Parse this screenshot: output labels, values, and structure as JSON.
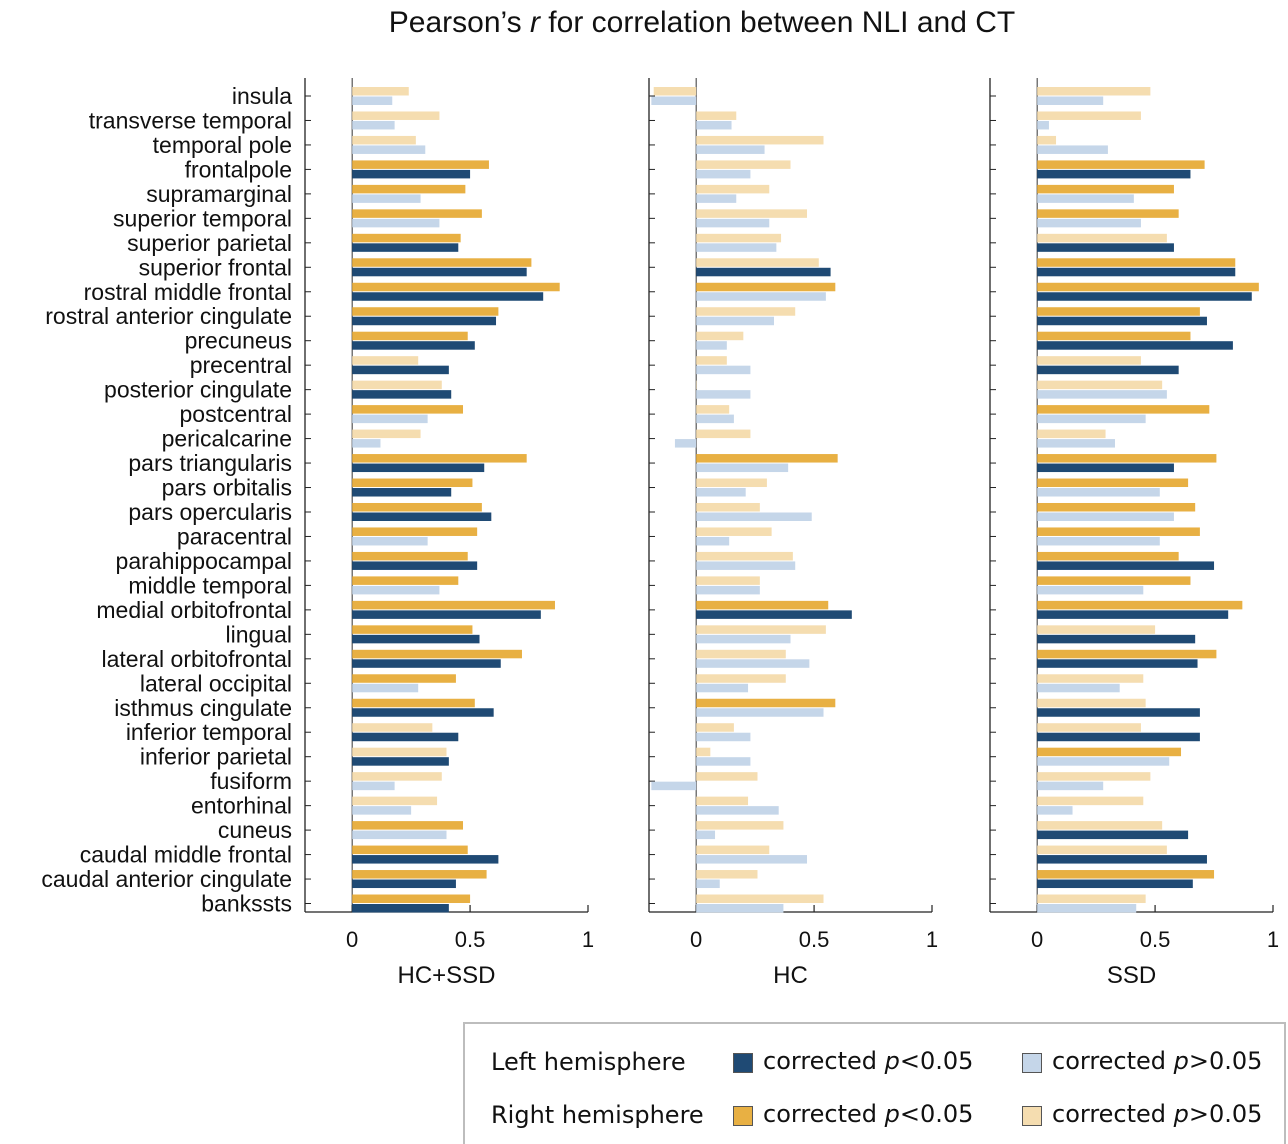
{
  "title_prefix": "Pearson’s ",
  "title_italic": "r",
  "title_suffix": " for correlation between NLI and CT",
  "legend": {
    "left_label": "Left hemisphere",
    "right_label": "Right hemisphere",
    "sig_prefix": "corrected ",
    "p_symbol": "p",
    "sig_text": "<0.05",
    "nonsig_text": ">0.05"
  },
  "colors": {
    "left_sig": "#1f4a74",
    "left_nonsig": "#c5d6e9",
    "right_sig": "#e8b043",
    "right_nonsig": "#f5ddb0"
  },
  "chart_data": [
    {
      "type": "bar",
      "orientation": "horizontal",
      "xlabel": "HC+SSD",
      "xlim": [
        -0.2,
        1
      ],
      "xticks": [
        0,
        0.5,
        1
      ],
      "categories": [
        "insula",
        "transverse temporal",
        "temporal pole",
        "frontalpole",
        "supramarginal",
        "superior temporal",
        "superior parietal",
        "superior frontal",
        "rostral middle frontal",
        "rostral anterior cingulate",
        "precuneus",
        "precentral",
        "posterior cingulate",
        "postcentral",
        "pericalcarine",
        "pars triangularis",
        "pars orbitalis",
        "pars opercularis",
        "paracentral",
        "parahippocampal",
        "middle temporal",
        "medial orbitofrontal",
        "lingual",
        "lateral orbitofrontal",
        "lateral occipital",
        "isthmus cingulate",
        "inferior temporal",
        "inferior parietal",
        "fusiform",
        "entorhinal",
        "cuneus",
        "caudal middle frontal",
        "caudal anterior cingulate",
        "bankssts"
      ],
      "right_hemisphere": [
        0.24,
        0.37,
        0.27,
        0.58,
        0.48,
        0.55,
        0.46,
        0.76,
        0.88,
        0.62,
        0.49,
        0.28,
        0.38,
        0.47,
        0.29,
        0.74,
        0.51,
        0.55,
        0.53,
        0.49,
        0.45,
        0.86,
        0.51,
        0.72,
        0.44,
        0.52,
        0.34,
        0.4,
        0.38,
        0.36,
        0.47,
        0.49,
        0.57,
        0.5
      ],
      "right_significant": [
        false,
        false,
        false,
        true,
        true,
        true,
        true,
        true,
        true,
        true,
        true,
        false,
        false,
        true,
        false,
        true,
        true,
        true,
        true,
        true,
        true,
        true,
        true,
        true,
        true,
        true,
        false,
        false,
        false,
        false,
        true,
        true,
        true,
        true
      ],
      "left_hemisphere": [
        0.17,
        0.18,
        0.31,
        0.5,
        0.29,
        0.37,
        0.45,
        0.74,
        0.81,
        0.61,
        0.52,
        0.41,
        0.42,
        0.32,
        0.12,
        0.56,
        0.42,
        0.59,
        0.32,
        0.53,
        0.37,
        0.8,
        0.54,
        0.63,
        0.28,
        0.6,
        0.45,
        0.41,
        0.18,
        0.25,
        0.4,
        0.62,
        0.44,
        0.41
      ],
      "left_significant": [
        false,
        false,
        false,
        true,
        false,
        false,
        true,
        true,
        true,
        true,
        true,
        true,
        true,
        false,
        false,
        true,
        true,
        true,
        false,
        true,
        false,
        true,
        true,
        true,
        false,
        true,
        true,
        true,
        false,
        false,
        false,
        true,
        true,
        true
      ]
    },
    {
      "type": "bar",
      "orientation": "horizontal",
      "xlabel": "HC",
      "xlim": [
        -0.2,
        1
      ],
      "xticks": [
        0,
        0.5,
        1
      ],
      "categories": [
        "insula",
        "transverse temporal",
        "temporal pole",
        "frontalpole",
        "supramarginal",
        "superior temporal",
        "superior parietal",
        "superior frontal",
        "rostral middle frontal",
        "rostral anterior cingulate",
        "precuneus",
        "precentral",
        "posterior cingulate",
        "postcentral",
        "pericalcarine",
        "pars triangularis",
        "pars orbitalis",
        "pars opercularis",
        "paracentral",
        "parahippocampal",
        "middle temporal",
        "medial orbitofrontal",
        "lingual",
        "lateral orbitofrontal",
        "lateral occipital",
        "isthmus cingulate",
        "inferior temporal",
        "inferior parietal",
        "fusiform",
        "entorhinal",
        "cuneus",
        "caudal middle frontal",
        "caudal anterior cingulate",
        "bankssts"
      ],
      "right_hemisphere": [
        -0.18,
        0.17,
        0.54,
        0.4,
        0.31,
        0.47,
        0.36,
        0.52,
        0.59,
        0.42,
        0.2,
        0.13,
        0.0,
        0.14,
        0.23,
        0.6,
        0.3,
        0.27,
        0.32,
        0.41,
        0.27,
        0.56,
        0.55,
        0.38,
        0.38,
        0.59,
        0.16,
        0.06,
        0.26,
        0.22,
        0.37,
        0.31,
        0.26,
        0.54
      ],
      "right_significant": [
        false,
        false,
        false,
        false,
        false,
        false,
        false,
        false,
        true,
        false,
        false,
        false,
        false,
        false,
        false,
        true,
        false,
        false,
        false,
        false,
        false,
        true,
        false,
        false,
        false,
        true,
        false,
        false,
        false,
        false,
        false,
        false,
        false,
        false
      ],
      "left_hemisphere": [
        -0.19,
        0.15,
        0.29,
        0.23,
        0.17,
        0.31,
        0.34,
        0.57,
        0.55,
        0.33,
        0.13,
        0.23,
        0.23,
        0.16,
        -0.09,
        0.39,
        0.21,
        0.49,
        0.14,
        0.42,
        0.27,
        0.66,
        0.4,
        0.48,
        0.22,
        0.54,
        0.23,
        0.23,
        -0.19,
        0.35,
        0.08,
        0.47,
        0.1,
        0.37
      ],
      "left_significant": [
        false,
        false,
        false,
        false,
        false,
        false,
        false,
        true,
        false,
        false,
        false,
        false,
        false,
        false,
        false,
        false,
        false,
        false,
        false,
        false,
        false,
        true,
        false,
        false,
        false,
        false,
        false,
        false,
        false,
        false,
        false,
        false,
        false,
        false
      ]
    },
    {
      "type": "bar",
      "orientation": "horizontal",
      "xlabel": "SSD",
      "xlim": [
        -0.2,
        1
      ],
      "xticks": [
        0,
        0.5,
        1
      ],
      "categories": [
        "insula",
        "transverse temporal",
        "temporal pole",
        "frontalpole",
        "supramarginal",
        "superior temporal",
        "superior parietal",
        "superior frontal",
        "rostral middle frontal",
        "rostral anterior cingulate",
        "precuneus",
        "precentral",
        "posterior cingulate",
        "postcentral",
        "pericalcarine",
        "pars triangularis",
        "pars orbitalis",
        "pars opercularis",
        "paracentral",
        "parahippocampal",
        "middle temporal",
        "medial orbitofrontal",
        "lingual",
        "lateral orbitofrontal",
        "lateral occipital",
        "isthmus cingulate",
        "inferior temporal",
        "inferior parietal",
        "fusiform",
        "entorhinal",
        "cuneus",
        "caudal middle frontal",
        "caudal anterior cingulate",
        "bankssts"
      ],
      "right_hemisphere": [
        0.48,
        0.44,
        0.08,
        0.71,
        0.58,
        0.6,
        0.55,
        0.84,
        0.94,
        0.69,
        0.65,
        0.44,
        0.53,
        0.73,
        0.29,
        0.76,
        0.64,
        0.67,
        0.69,
        0.6,
        0.65,
        0.87,
        0.5,
        0.76,
        0.45,
        0.46,
        0.44,
        0.61,
        0.48,
        0.45,
        0.53,
        0.55,
        0.75,
        0.46
      ],
      "right_significant": [
        false,
        false,
        false,
        true,
        true,
        true,
        false,
        true,
        true,
        true,
        true,
        false,
        false,
        true,
        false,
        true,
        true,
        true,
        true,
        true,
        true,
        true,
        false,
        true,
        false,
        false,
        false,
        true,
        false,
        false,
        false,
        false,
        true,
        false
      ],
      "left_hemisphere": [
        0.28,
        0.05,
        0.3,
        0.65,
        0.41,
        0.44,
        0.58,
        0.84,
        0.91,
        0.72,
        0.83,
        0.6,
        0.55,
        0.46,
        0.33,
        0.58,
        0.52,
        0.58,
        0.52,
        0.75,
        0.45,
        0.81,
        0.67,
        0.68,
        0.35,
        0.69,
        0.69,
        0.56,
        0.28,
        0.15,
        0.64,
        0.72,
        0.66,
        0.42
      ],
      "left_significant": [
        false,
        false,
        false,
        true,
        false,
        false,
        true,
        true,
        true,
        true,
        true,
        true,
        false,
        false,
        false,
        true,
        false,
        false,
        false,
        true,
        false,
        true,
        true,
        true,
        false,
        true,
        true,
        false,
        false,
        false,
        true,
        true,
        true,
        false
      ]
    }
  ]
}
